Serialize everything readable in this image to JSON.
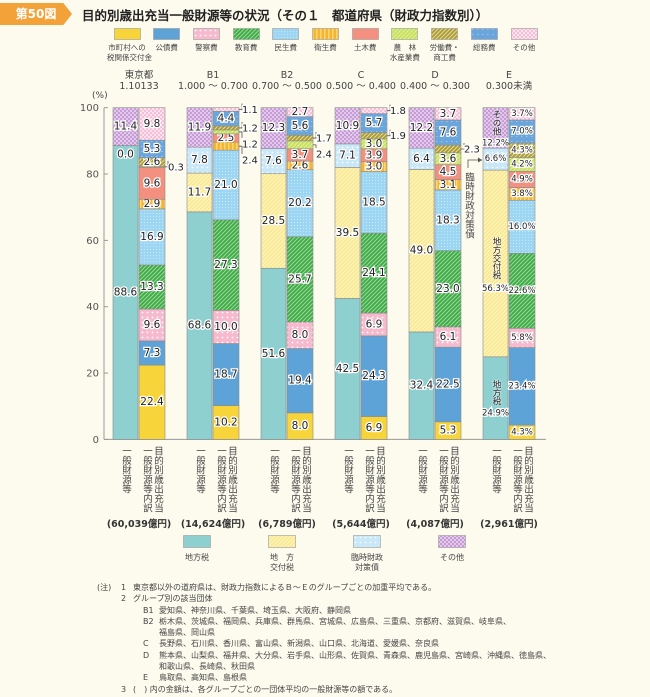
{
  "header": {
    "figure_tag": "第50図",
    "title": "目的別歳出充当一般財源等の状況（その１　都道府県（財政力指数別））"
  },
  "chart_data": {
    "type": "bar",
    "stacked": true,
    "title": "目的別歳出充当一般財源等の状況（その１　都道府県（財政力指数別））",
    "ylabel": "(%)",
    "ylim": [
      0,
      100
    ],
    "yticks": [
      "0",
      "20",
      "40",
      "60",
      "80",
      "100"
    ],
    "grid": false,
    "legend_placement": "top and bottom",
    "general_series": [
      "地方税",
      "地方交付税",
      "臨時財政対策債",
      "その他"
    ],
    "general_legend_labels": [
      "地方税",
      "地　方\n交付税",
      "臨時財政\n対策債",
      "その他"
    ],
    "breakdown_series": [
      "市町村への税関係交付金",
      "公債費",
      "警察費",
      "教育費",
      "民生費",
      "衛生費",
      "土木費",
      "農林水産業費",
      "労働費・商工費",
      "総務費",
      "その他"
    ],
    "breakdown_legend_labels": [
      "市町村への\n税関係交付金",
      "公債費",
      "警察費",
      "教育費",
      "民生費",
      "衛生費",
      "土木費",
      "農　林\n水産業費",
      "労働費・\n商工費",
      "総務費",
      "その他"
    ],
    "x_labels": {
      "general": "一般財源等",
      "breakdown": "目的別歳出充当一般財源等内訳"
    },
    "groups": [
      {
        "name": "東京都",
        "range": "1.10133",
        "amount": "(60,039億円)",
        "suffix": "",
        "general": [
          88.6,
          0.0,
          null,
          11.4
        ],
        "breakdown": [
          22.4,
          7.3,
          9.6,
          13.3,
          16.9,
          2.9,
          9.6,
          0.3,
          2.6,
          5.3,
          9.8
        ]
      },
      {
        "name": "B1",
        "range": "1.000 ～ 0.700",
        "amount": "(14,624億円)",
        "suffix": "",
        "general": [
          68.6,
          11.7,
          7.8,
          11.9
        ],
        "breakdown": [
          10.2,
          18.7,
          10.0,
          27.3,
          21.0,
          2.4,
          2.5,
          1.2,
          1.2,
          4.4,
          1.1
        ]
      },
      {
        "name": "B2",
        "range": "0.700 ～ 0.500",
        "amount": "(6,789億円)",
        "suffix": "",
        "general": [
          51.6,
          28.5,
          7.6,
          12.3
        ],
        "breakdown": [
          8.0,
          19.4,
          8.0,
          25.7,
          20.2,
          2.6,
          3.7,
          2.4,
          1.7,
          5.6,
          2.7
        ]
      },
      {
        "name": "C",
        "range": "0.500 ～ 0.400",
        "amount": "(5,644億円)",
        "suffix": "",
        "general": [
          42.5,
          39.5,
          7.1,
          10.9
        ],
        "breakdown": [
          6.9,
          24.3,
          6.9,
          24.1,
          18.5,
          3.0,
          3.9,
          3.0,
          1.9,
          5.7,
          1.8
        ]
      },
      {
        "name": "D",
        "range": "0.400 ～ 0.300",
        "amount": "(4,087億円)",
        "suffix": "",
        "general": [
          32.4,
          49.0,
          6.4,
          12.2
        ],
        "breakdown": [
          5.3,
          22.5,
          6.1,
          23.0,
          18.3,
          3.1,
          4.5,
          3.6,
          2.3,
          7.6,
          3.7
        ]
      },
      {
        "name": "E",
        "range": "0.300未満",
        "amount": "(2,961億円)",
        "suffix": "%",
        "general": [
          24.9,
          56.3,
          6.6,
          12.2
        ],
        "general_inline_names": [
          "地方税",
          "地方交付税",
          null,
          "その他"
        ],
        "breakdown": [
          4.3,
          23.4,
          5.8,
          22.6,
          16.0,
          3.8,
          4.9,
          4.2,
          4.3,
          7.0,
          3.7
        ]
      }
    ],
    "annotation": "臨時財政対策債"
  },
  "notes": {
    "prefix": "(注)",
    "items": [
      {
        "num": "1",
        "text": "東京都以外の道府県は、財政力指数によるＢ～Ｅのグループごとの加重平均である。"
      },
      {
        "num": "2",
        "text": "グループ別の該当団体"
      },
      {
        "num": "3",
        "text": "(　) 内の金額は、各グループごとの一団体平均の一般財源等の額である。"
      }
    ],
    "groups": [
      {
        "key": "B1",
        "lines": [
          "愛知県、神奈川県、千葉県、埼玉県、大阪府、静岡県"
        ]
      },
      {
        "key": "B2",
        "lines": [
          "栃木県、茨城県、福岡県、兵庫県、群馬県、宮城県、広島県、三重県、京都府、滋賀県、岐阜県、",
          "福島県、岡山県"
        ]
      },
      {
        "key": "C",
        "lines": [
          "長野県、石川県、香川県、富山県、新潟県、山口県、北海道、愛媛県、奈良県"
        ]
      },
      {
        "key": "D",
        "lines": [
          "熊本県、山梨県、福井県、大分県、岩手県、山形県、佐賀県、青森県、鹿児島県、宮崎県、沖縄県、徳島県、",
          "和歌山県、長崎県、秋田県"
        ]
      },
      {
        "key": "E",
        "lines": [
          "鳥取県、高知県、島根県"
        ]
      }
    ]
  }
}
